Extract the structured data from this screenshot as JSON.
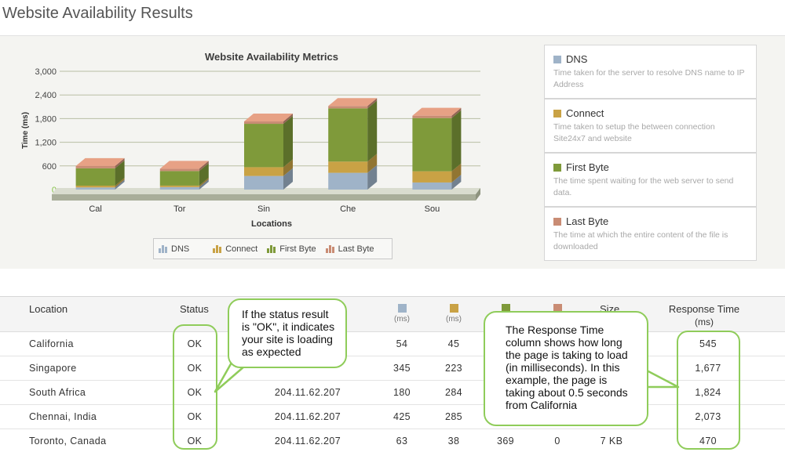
{
  "page": {
    "title": "Website Availability Results"
  },
  "chart_data": {
    "type": "bar",
    "stacked": true,
    "title": "Website Availability Metrics",
    "xlabel": "Locations",
    "ylabel": "Time (ms)",
    "ylim": [
      0,
      3000
    ],
    "y_ticks": [
      "0",
      "600",
      "1,200",
      "1,800",
      "2,400",
      "3,000"
    ],
    "categories": [
      "Cal",
      "Tor",
      "Sin",
      "Che",
      "Sou"
    ],
    "series": [
      {
        "name": "DNS",
        "color": "#9fb3c8",
        "values": [
          54,
          63,
          345,
          425,
          180
        ]
      },
      {
        "name": "Connect",
        "color": "#c9a245",
        "values": [
          45,
          38,
          223,
          285,
          284
        ]
      },
      {
        "name": "First Byte",
        "color": "#7f9a3a",
        "values": [
          440,
          369,
          1100,
          1350,
          1350
        ]
      },
      {
        "name": "Last Byte",
        "color": "#c98c74",
        "values": [
          6,
          0,
          9,
          13,
          10
        ]
      }
    ],
    "legend_position": "bottom"
  },
  "legend": {
    "items": [
      {
        "name": "DNS",
        "color": "#9fb3c8"
      },
      {
        "name": "Connect",
        "color": "#c9a245"
      },
      {
        "name": "First Byte",
        "color": "#7f9a3a"
      },
      {
        "name": "Last Byte",
        "color": "#c98c74"
      }
    ]
  },
  "metric_cards": [
    {
      "name": "DNS",
      "color": "#9fb3c8",
      "desc": "Time taken for the server to resolve DNS name to IP Address"
    },
    {
      "name": "Connect",
      "color": "#c9a245",
      "desc": "Time taken to setup the between connection Site24x7 and website"
    },
    {
      "name": "First Byte",
      "color": "#7f9a3a",
      "desc": "The time spent waiting for the web server to send data."
    },
    {
      "name": "Last Byte",
      "color": "#c98c74",
      "desc": "The time at which the entire content of the file is downloaded"
    }
  ],
  "table": {
    "headers": {
      "location": "Location",
      "status": "Status",
      "unit": "(ms)",
      "size": "Size",
      "response_time": "Response Time",
      "response_unit": "(ms)"
    },
    "rows": [
      {
        "location": "California",
        "status": "OK",
        "ip": "",
        "dns": "54",
        "connect": "45",
        "first_byte": "",
        "last_byte": "",
        "size": "",
        "response": "545"
      },
      {
        "location": "Singapore",
        "status": "OK",
        "ip": "",
        "dns": "345",
        "connect": "223",
        "first_byte": "",
        "last_byte": "",
        "size": "",
        "response": "1,677"
      },
      {
        "location": "South Africa",
        "status": "OK",
        "ip": "204.11.62.207",
        "dns": "180",
        "connect": "284",
        "first_byte": "",
        "last_byte": "",
        "size": "",
        "response": "1,824"
      },
      {
        "location": "Chennai, India",
        "status": "OK",
        "ip": "204.11.62.207",
        "dns": "425",
        "connect": "285",
        "first_byte": "",
        "last_byte": "",
        "size": "",
        "response": "2,073"
      },
      {
        "location": "Toronto, Canada",
        "status": "OK",
        "ip": "204.11.62.207",
        "dns": "63",
        "connect": "38",
        "first_byte": "369",
        "last_byte": "0",
        "size": "7 KB",
        "response": "470"
      }
    ]
  },
  "callouts": {
    "status": "If the status result is \"OK\", it indicates your site is loading as expected",
    "response": "The Response Time column shows how long the page is taking to load (in milliseconds).  In this example, the page is taking about 0.5 seconds from California"
  }
}
